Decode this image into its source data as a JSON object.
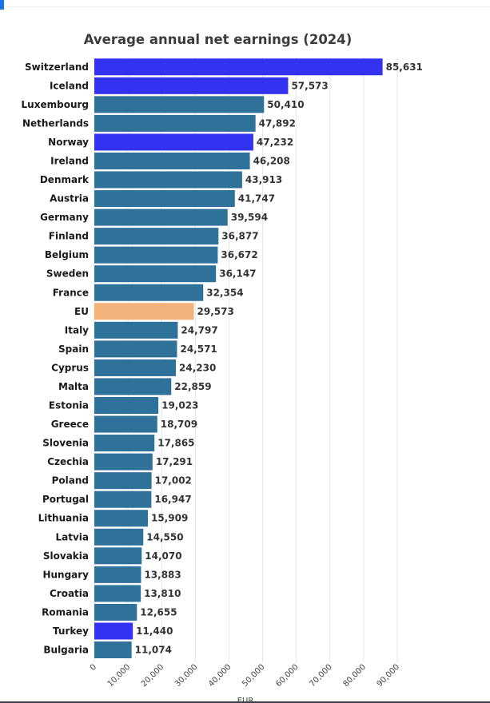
{
  "colors": {
    "default_bar": "#2e7199",
    "highlight_bar": "#3232f0",
    "eu_bar": "#f2b27a",
    "grid": "#e6e6e6"
  },
  "chart_data": {
    "type": "bar",
    "orientation": "horizontal",
    "title": "Average annual net earnings (2024)",
    "xlabel": "EUR",
    "ylabel": "",
    "xlim": [
      0,
      90000
    ],
    "xticks": [
      0,
      10000,
      20000,
      30000,
      40000,
      50000,
      60000,
      70000,
      80000,
      90000
    ],
    "xtick_labels": [
      "0",
      "10,000",
      "20,000",
      "30,000",
      "40,000",
      "50,000",
      "60,000",
      "70,000",
      "80,000",
      "90,000"
    ],
    "grid": true,
    "categories": [
      "Switzerland",
      "Iceland",
      "Luxembourg",
      "Netherlands",
      "Norway",
      "Ireland",
      "Denmark",
      "Austria",
      "Germany",
      "Finland",
      "Belgium",
      "Sweden",
      "France",
      "EU",
      "Italy",
      "Spain",
      "Cyprus",
      "Malta",
      "Estonia",
      "Greece",
      "Slovenia",
      "Czechia",
      "Poland",
      "Portugal",
      "Lithuania",
      "Latvia",
      "Slovakia",
      "Hungary",
      "Croatia",
      "Romania",
      "Turkey",
      "Bulgaria"
    ],
    "values": [
      85631,
      57573,
      50410,
      47892,
      47232,
      46208,
      43913,
      41747,
      39594,
      36877,
      36672,
      36147,
      32354,
      29573,
      24797,
      24571,
      24230,
      22859,
      19023,
      18709,
      17865,
      17291,
      17002,
      16947,
      15909,
      14550,
      14070,
      13883,
      13810,
      12655,
      11440,
      11074
    ],
    "value_labels": [
      "85,631",
      "57,573",
      "50,410",
      "47,892",
      "47,232",
      "46,208",
      "43,913",
      "41,747",
      "39,594",
      "36,877",
      "36,672",
      "36,147",
      "32,354",
      "29,573",
      "24,797",
      "24,571",
      "24,230",
      "22,859",
      "19,023",
      "18,709",
      "17,865",
      "17,291",
      "17,002",
      "16,947",
      "15,909",
      "14,550",
      "14,070",
      "13,883",
      "13,810",
      "12,655",
      "11,440",
      "11,074"
    ],
    "bar_color_groups": [
      "highlight",
      "highlight",
      "default",
      "default",
      "highlight",
      "default",
      "default",
      "default",
      "default",
      "default",
      "default",
      "default",
      "default",
      "eu",
      "default",
      "default",
      "default",
      "default",
      "default",
      "default",
      "default",
      "default",
      "default",
      "default",
      "default",
      "default",
      "default",
      "default",
      "default",
      "default",
      "highlight",
      "default"
    ]
  }
}
